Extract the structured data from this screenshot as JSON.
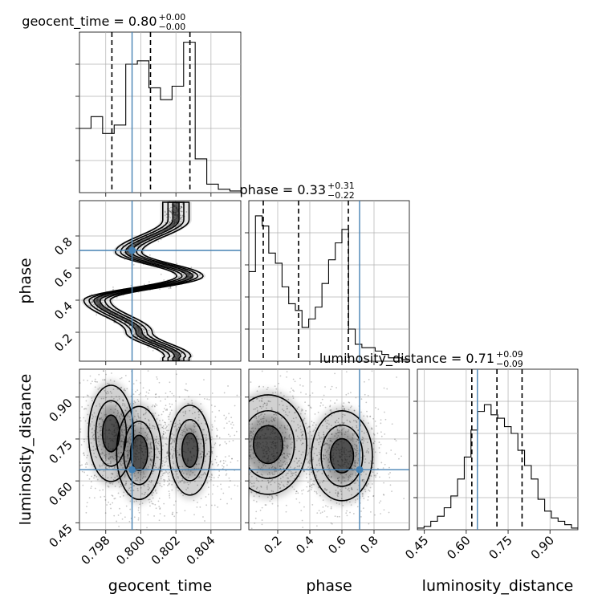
{
  "chart_data": {
    "type": "corner",
    "parameters": [
      "geocent_time",
      "phase",
      "luminosity_distance"
    ],
    "axis_labels": {
      "geocent_time": "geocent_time",
      "phase": "phase",
      "luminosity_distance": "luminosity_distance"
    },
    "titles": [
      {
        "param": "geocent_time",
        "text": "geocent_time = 0.80",
        "plus": "+0.00",
        "minus": "−0.00"
      },
      {
        "param": "phase",
        "text": "phase = 0.33",
        "plus": "+0.31",
        "minus": "−0.22"
      },
      {
        "param": "luminosity_distance",
        "text": "luminosity_distance = 0.71",
        "plus": "+0.09",
        "minus": "−0.09"
      }
    ],
    "ranges": {
      "geocent_time": [
        0.7965,
        0.8057
      ],
      "phase": [
        0.02,
        1.02
      ],
      "luminosity_distance": [
        0.425,
        1.0
      ]
    },
    "ticks": {
      "geocent_time": [
        "0.798",
        "0.800",
        "0.802",
        "0.804"
      ],
      "phase": [
        "0.2",
        "0.4",
        "0.6",
        "0.8"
      ],
      "luminosity_distance": [
        "0.45",
        "0.60",
        "0.75",
        "0.90"
      ]
    },
    "truths": {
      "geocent_time": 0.7995,
      "phase": 0.71,
      "luminosity_distance": 0.64
    },
    "quantiles": {
      "geocent_time": [
        0.79835,
        0.80055,
        0.8028
      ],
      "phase": [
        0.11,
        0.33,
        0.64
      ],
      "luminosity_distance": [
        0.62,
        0.71,
        0.8
      ]
    },
    "histograms": {
      "geocent_time": {
        "edges": [
          0.7965,
          0.79716,
          0.79782,
          0.79848,
          0.79914,
          0.7998,
          0.80046,
          0.80112,
          0.80178,
          0.80244,
          0.8031,
          0.80376,
          0.80442,
          0.80508,
          0.8057
        ],
        "counts": [
          0.38,
          0.45,
          0.35,
          0.4,
          0.76,
          0.78,
          0.62,
          0.55,
          0.63,
          0.89,
          0.2,
          0.05,
          0.02,
          0.01
        ]
      },
      "phase": {
        "edges": [
          0.02,
          0.0614,
          0.1029,
          0.1443,
          0.1857,
          0.2271,
          0.2686,
          0.31,
          0.3514,
          0.3929,
          0.4343,
          0.4757,
          0.5171,
          0.5586,
          0.6,
          0.6414,
          0.6829,
          0.7243,
          0.7657,
          0.8071,
          0.8486,
          0.89,
          0.9314,
          0.9729,
          1.0143
        ],
        "counts": [
          0.53,
          0.86,
          0.8,
          0.64,
          0.58,
          0.44,
          0.34,
          0.3,
          0.2,
          0.25,
          0.32,
          0.46,
          0.6,
          0.7,
          0.78,
          0.19,
          0.1,
          0.08,
          0.08,
          0.06,
          0.04,
          0.02,
          0.02,
          0.01
        ]
      },
      "luminosity_distance": {
        "edges": [
          0.425,
          0.449,
          0.473,
          0.497,
          0.521,
          0.545,
          0.569,
          0.593,
          0.617,
          0.641,
          0.665,
          0.689,
          0.713,
          0.737,
          0.761,
          0.785,
          0.809,
          0.833,
          0.857,
          0.881,
          0.905,
          0.929,
          0.953,
          0.977,
          1.0
        ],
        "counts": [
          0.01,
          0.02,
          0.05,
          0.08,
          0.13,
          0.2,
          0.3,
          0.43,
          0.59,
          0.7,
          0.74,
          0.68,
          0.66,
          0.61,
          0.57,
          0.47,
          0.38,
          0.3,
          0.18,
          0.11,
          0.07,
          0.05,
          0.03,
          0.01
        ]
      }
    },
    "contours_2d": {
      "phase_vs_geocent_time": {
        "note_levels": 3,
        "ridge_phase": [
          0.05,
          0.2,
          0.4,
          0.55,
          0.7,
          0.9
        ],
        "ridge_time": [
          0.8021,
          0.7999,
          0.7975,
          0.8028,
          0.7993,
          0.802
        ]
      },
      "luminosity_distance_vs_geocent_time": {
        "modes": [
          {
            "x": 0.7983,
            "y": 0.77
          },
          {
            "x": 0.7999,
            "y": 0.7
          },
          {
            "x": 0.8028,
            "y": 0.71
          }
        ]
      },
      "luminosity_distance_vs_phase": {
        "modes": [
          {
            "x": 0.14,
            "y": 0.73
          },
          {
            "x": 0.6,
            "y": 0.69
          }
        ]
      }
    },
    "colors": {
      "truth": "#4682b4",
      "contour": "#000000",
      "quantile": "#000000",
      "grid": "#b0b0b0"
    },
    "grid": true
  }
}
